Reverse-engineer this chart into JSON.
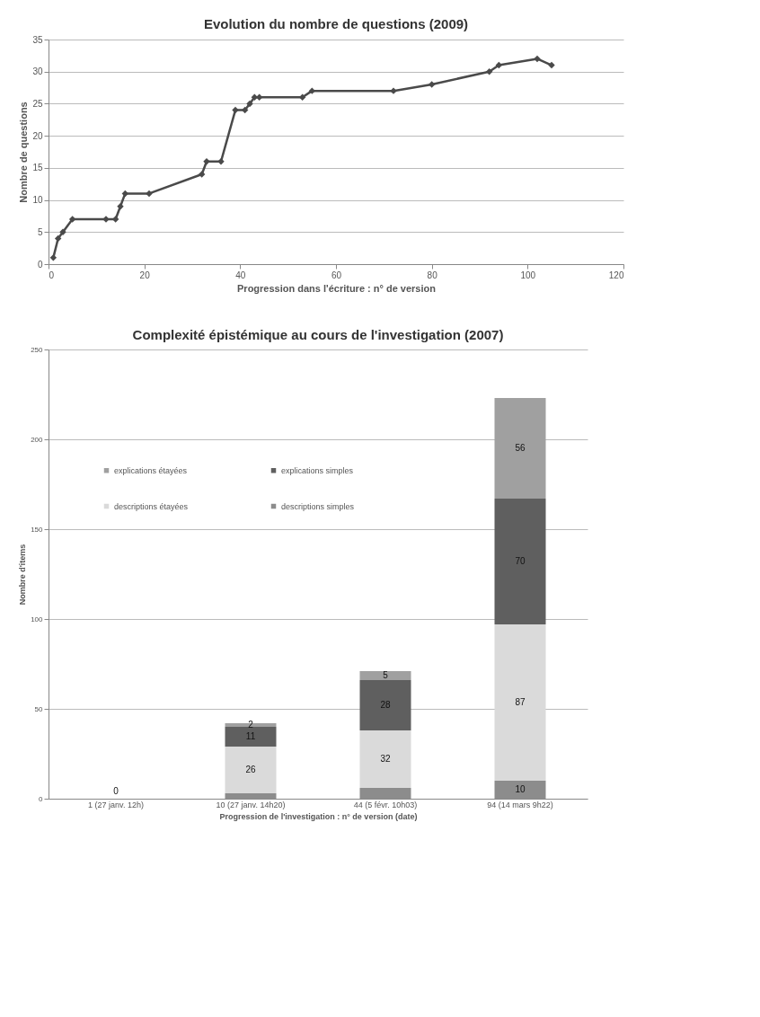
{
  "chart_data": [
    {
      "type": "line",
      "title": "Evolution du nombre de questions (2009)",
      "xlabel": "Progression dans l'écriture : n° de version",
      "ylabel": "Nombre de questions",
      "xlim": [
        0,
        120
      ],
      "xticks": [
        0,
        20,
        40,
        60,
        80,
        100,
        120
      ],
      "ylim": [
        0,
        35
      ],
      "yticks": [
        0,
        5,
        10,
        15,
        20,
        25,
        30,
        35
      ],
      "grid": "y",
      "marker": "diamond",
      "line_style": "solid",
      "series": [
        {
          "color": "#4a4a4a",
          "x": [
            1,
            2,
            3,
            5,
            12,
            14,
            15,
            16,
            21,
            32,
            33,
            36,
            39,
            41,
            42,
            43,
            44,
            53,
            55,
            72,
            80,
            92,
            94,
            102,
            105
          ],
          "values": [
            1,
            4,
            5,
            7,
            7,
            7,
            9,
            11,
            11,
            14,
            16,
            16,
            24,
            24,
            25,
            26,
            26,
            26,
            27,
            27,
            28,
            30,
            31,
            32,
            31
          ]
        }
      ]
    },
    {
      "type": "bar",
      "stacked": true,
      "title": "Complexité épistémique au cours de l'investigation (2007)",
      "xlabel": "Progression de l'investigation : n° de version (date)",
      "ylabel": "Nombre d'items",
      "categories": [
        "1 (27 janv. 12h)",
        "10 (27 janv. 14h20)",
        "44 (5 févr. 10h03)",
        "94 (14 mars 9h22)"
      ],
      "ylim": [
        0,
        250
      ],
      "yticks": [
        0,
        50,
        100,
        150,
        200,
        250
      ],
      "grid": "y",
      "legend": "top left",
      "series": [
        {
          "name": "descriptions simples",
          "color": "#8c8c8c",
          "values": [
            0,
            3,
            6,
            10
          ],
          "value_labels": [
            "0",
            null,
            null,
            "10"
          ]
        },
        {
          "name": "descriptions étayées",
          "color": "#dadada",
          "values": [
            0,
            26,
            32,
            87
          ],
          "value_labels": [
            null,
            "26",
            "32",
            "87"
          ]
        },
        {
          "name": "explications simples",
          "color": "#5f5f5f",
          "values": [
            0,
            11,
            28,
            70
          ],
          "value_labels": [
            null,
            "11",
            "28",
            "70"
          ]
        },
        {
          "name": "explications étayées",
          "color": "#a0a0a0",
          "values": [
            0,
            2,
            5,
            56
          ],
          "value_labels": [
            null,
            "2",
            "5",
            "56"
          ]
        }
      ]
    }
  ]
}
